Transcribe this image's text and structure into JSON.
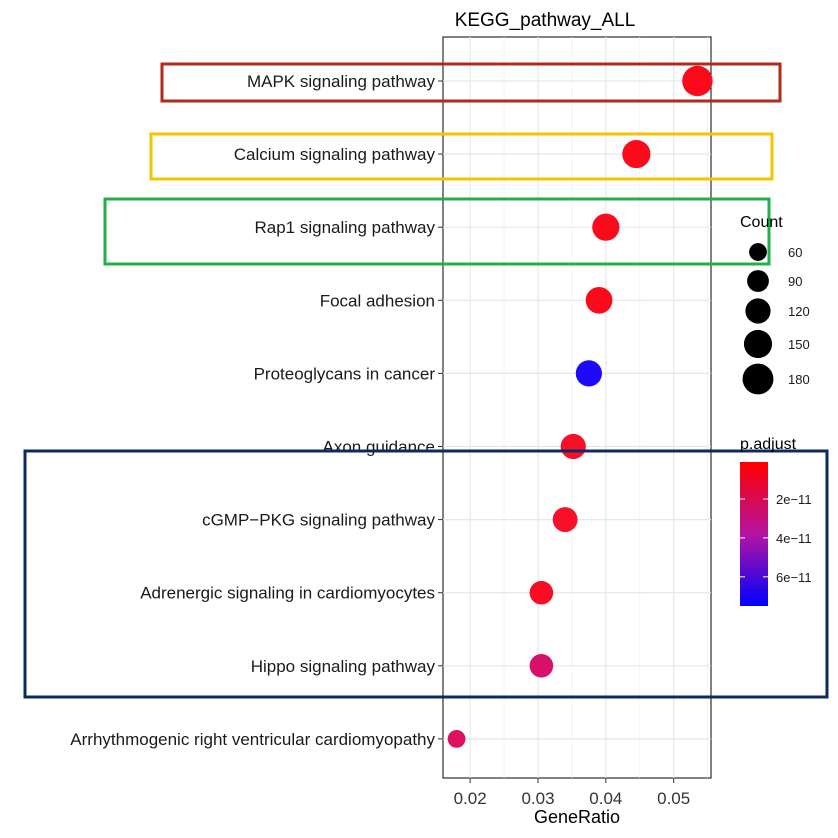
{
  "chart_data": {
    "type": "scatter",
    "title": "KEGG_pathway_ALL",
    "xlabel": "GeneRatio",
    "ylabel": "",
    "xlim": [
      0.016,
      0.0555
    ],
    "x_ticks": [
      0.02,
      0.03,
      0.04,
      0.05
    ],
    "x_tick_labels": [
      "0.02",
      "0.03",
      "0.04",
      "0.05"
    ],
    "grid": true,
    "points": [
      {
        "term": "MAPK signaling pathway",
        "gene_ratio": 0.0535,
        "count": 175,
        "p_adjust": 1e-12,
        "color": "#fb0a1c"
      },
      {
        "term": "Calcium signaling pathway",
        "gene_ratio": 0.0445,
        "count": 150,
        "p_adjust": 1e-12,
        "color": "#fb0a1c"
      },
      {
        "term": "Rap1 signaling pathway",
        "gene_ratio": 0.04,
        "count": 140,
        "p_adjust": 1e-12,
        "color": "#fb0a1c"
      },
      {
        "term": "Focal adhesion",
        "gene_ratio": 0.039,
        "count": 135,
        "p_adjust": 1e-12,
        "color": "#fb0a1c"
      },
      {
        "term": "Proteoglycans in cancer",
        "gene_ratio": 0.0375,
        "count": 130,
        "p_adjust": 7.4e-11,
        "color": "#1e0afa"
      },
      {
        "term": "Axon guidance",
        "gene_ratio": 0.0352,
        "count": 120,
        "p_adjust": 3e-12,
        "color": "#f80f2a"
      },
      {
        "term": "cGMP−PKG signaling pathway",
        "gene_ratio": 0.034,
        "count": 117,
        "p_adjust": 3e-12,
        "color": "#f80f2a"
      },
      {
        "term": "Adrenergic signaling in cardiomyocytes",
        "gene_ratio": 0.0305,
        "count": 105,
        "p_adjust": 2e-12,
        "color": "#fa0c22"
      },
      {
        "term": "Hippo signaling pathway",
        "gene_ratio": 0.0305,
        "count": 105,
        "p_adjust": 2.4e-11,
        "color": "#d90f6c"
      },
      {
        "term": "Arrhythmogenic right ventricular cardiomyopathy",
        "gene_ratio": 0.018,
        "count": 60,
        "p_adjust": 2.2e-11,
        "color": "#dd1063"
      }
    ],
    "legend_count": {
      "title": "Count",
      "entries": [
        {
          "label": "60",
          "value": 60
        },
        {
          "label": "90",
          "value": 90
        },
        {
          "label": "120",
          "value": 120
        },
        {
          "label": "150",
          "value": 150
        },
        {
          "label": "180",
          "value": 180
        }
      ]
    },
    "legend_padjust": {
      "title": "p.adjust",
      "low_color": "#ff0000",
      "high_color": "#0000ff",
      "range": [
        1e-12,
        7.5e-11
      ],
      "ticks": [
        {
          "label": "2e−11",
          "value": 2e-11
        },
        {
          "label": "4e−11",
          "value": 4e-11
        },
        {
          "label": "6e−11",
          "value": 6e-11
        }
      ]
    },
    "highlight_boxes": [
      {
        "terms": [
          "MAPK signaling pathway"
        ],
        "color": "#b22a1a"
      },
      {
        "terms": [
          "Calcium signaling pathway"
        ],
        "color": "#f5c400"
      },
      {
        "terms": [
          "Rap1 signaling pathway"
        ],
        "color": "#1fb04a"
      },
      {
        "terms": [
          "Axon guidance",
          "cGMP−PKG signaling pathway",
          "Adrenergic signaling in cardiomyocytes",
          "Hippo signaling pathway"
        ],
        "color": "#0d2a5e"
      }
    ]
  }
}
